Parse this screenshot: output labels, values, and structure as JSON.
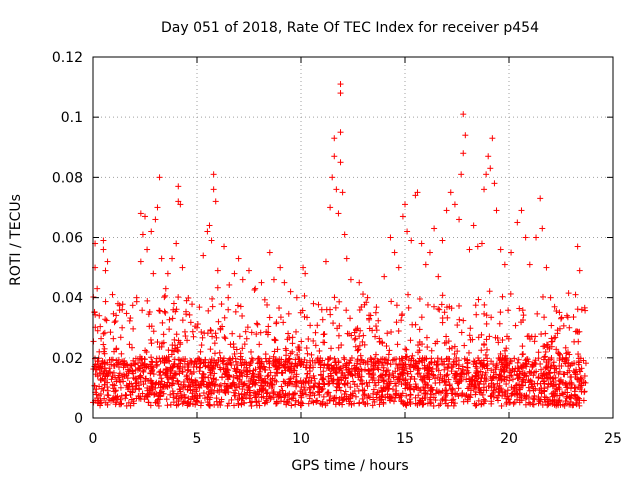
{
  "chart_data": {
    "type": "scatter",
    "title": "Day 051 of 2018, Rate Of TEC Index for receiver p454",
    "xlabel": "GPS time / hours",
    "ylabel": "ROTI / TECUs",
    "xlim": [
      0,
      25
    ],
    "ylim": [
      0,
      0.12
    ],
    "xticks": [
      0,
      5,
      10,
      15,
      20,
      25
    ],
    "xtick_labels": [
      "0",
      "5",
      "10",
      "15",
      "20",
      "25"
    ],
    "yticks": [
      0,
      0.02,
      0.04,
      0.06,
      0.08,
      0.1,
      0.12
    ],
    "ytick_labels": [
      "0",
      "0.02",
      "0.04",
      "0.06",
      "0.08",
      "0.1",
      "0.12"
    ],
    "grid": true,
    "marker": "+",
    "color": "#ff0000",
    "series": [
      {
        "name": "ROTI",
        "points": [
          [
            0.1,
            0.058
          ],
          [
            0.1,
            0.05
          ],
          [
            0.2,
            0.043
          ],
          [
            0.3,
            0.034
          ],
          [
            0.3,
            0.022
          ],
          [
            0.5,
            0.028
          ],
          [
            0.5,
            0.059
          ],
          [
            0.5,
            0.056
          ],
          [
            0.6,
            0.049
          ],
          [
            0.7,
            0.052
          ],
          [
            1.2,
            0.038
          ],
          [
            1.4,
            0.03
          ],
          [
            1.5,
            0.019
          ],
          [
            2.1,
            0.04
          ],
          [
            2.3,
            0.052
          ],
          [
            2.3,
            0.068
          ],
          [
            2.4,
            0.061
          ],
          [
            2.5,
            0.067
          ],
          [
            2.6,
            0.056
          ],
          [
            2.8,
            0.062
          ],
          [
            2.9,
            0.048
          ],
          [
            3.0,
            0.066
          ],
          [
            3.1,
            0.07
          ],
          [
            3.2,
            0.08
          ],
          [
            3.3,
            0.053
          ],
          [
            3.5,
            0.043
          ],
          [
            3.6,
            0.048
          ],
          [
            3.8,
            0.053
          ],
          [
            4.0,
            0.058
          ],
          [
            4.1,
            0.072
          ],
          [
            4.1,
            0.077
          ],
          [
            4.2,
            0.071
          ],
          [
            4.3,
            0.05
          ],
          [
            4.5,
            0.039
          ],
          [
            5.0,
            0.03
          ],
          [
            5.3,
            0.054
          ],
          [
            5.5,
            0.062
          ],
          [
            5.6,
            0.064
          ],
          [
            5.7,
            0.059
          ],
          [
            5.8,
            0.081
          ],
          [
            5.8,
            0.076
          ],
          [
            5.9,
            0.072
          ],
          [
            6.0,
            0.049
          ],
          [
            6.3,
            0.057
          ],
          [
            6.5,
            0.04
          ],
          [
            6.8,
            0.048
          ],
          [
            7.0,
            0.053
          ],
          [
            7.2,
            0.046
          ],
          [
            7.5,
            0.049
          ],
          [
            7.8,
            0.043
          ],
          [
            8.1,
            0.045
          ],
          [
            8.5,
            0.055
          ],
          [
            8.7,
            0.046
          ],
          [
            9.0,
            0.05
          ],
          [
            9.2,
            0.045
          ],
          [
            9.5,
            0.042
          ],
          [
            9.8,
            0.04
          ],
          [
            10.1,
            0.05
          ],
          [
            10.2,
            0.048
          ],
          [
            10.6,
            0.038
          ],
          [
            11.0,
            0.036
          ],
          [
            11.2,
            0.052
          ],
          [
            11.4,
            0.07
          ],
          [
            11.5,
            0.08
          ],
          [
            11.6,
            0.093
          ],
          [
            11.6,
            0.087
          ],
          [
            11.7,
            0.076
          ],
          [
            11.8,
            0.068
          ],
          [
            11.9,
            0.111
          ],
          [
            11.9,
            0.108
          ],
          [
            11.9,
            0.095
          ],
          [
            11.9,
            0.085
          ],
          [
            12.0,
            0.075
          ],
          [
            12.1,
            0.061
          ],
          [
            12.2,
            0.053
          ],
          [
            12.4,
            0.046
          ],
          [
            12.8,
            0.045
          ],
          [
            13.2,
            0.04
          ],
          [
            13.6,
            0.035
          ],
          [
            14.0,
            0.047
          ],
          [
            14.3,
            0.06
          ],
          [
            14.5,
            0.055
          ],
          [
            14.7,
            0.05
          ],
          [
            14.9,
            0.067
          ],
          [
            15.0,
            0.071
          ],
          [
            15.1,
            0.062
          ],
          [
            15.3,
            0.059
          ],
          [
            15.5,
            0.074
          ],
          [
            15.6,
            0.075
          ],
          [
            15.8,
            0.058
          ],
          [
            16.0,
            0.051
          ],
          [
            16.2,
            0.055
          ],
          [
            16.4,
            0.063
          ],
          [
            16.6,
            0.047
          ],
          [
            16.8,
            0.059
          ],
          [
            17.0,
            0.069
          ],
          [
            17.2,
            0.075
          ],
          [
            17.4,
            0.071
          ],
          [
            17.6,
            0.066
          ],
          [
            17.7,
            0.081
          ],
          [
            17.8,
            0.088
          ],
          [
            17.8,
            0.101
          ],
          [
            17.9,
            0.094
          ],
          [
            18.1,
            0.056
          ],
          [
            18.3,
            0.064
          ],
          [
            18.5,
            0.057
          ],
          [
            18.7,
            0.058
          ],
          [
            18.8,
            0.076
          ],
          [
            18.9,
            0.081
          ],
          [
            19.0,
            0.087
          ],
          [
            19.1,
            0.083
          ],
          [
            19.2,
            0.093
          ],
          [
            19.3,
            0.078
          ],
          [
            19.4,
            0.069
          ],
          [
            19.6,
            0.056
          ],
          [
            19.8,
            0.051
          ],
          [
            20.1,
            0.055
          ],
          [
            20.4,
            0.065
          ],
          [
            20.6,
            0.069
          ],
          [
            20.8,
            0.06
          ],
          [
            21.0,
            0.051
          ],
          [
            21.3,
            0.06
          ],
          [
            21.5,
            0.073
          ],
          [
            21.6,
            0.063
          ],
          [
            21.8,
            0.05
          ],
          [
            22.0,
            0.04
          ],
          [
            22.5,
            0.033
          ],
          [
            22.9,
            0.03
          ],
          [
            23.2,
            0.041
          ],
          [
            23.3,
            0.057
          ],
          [
            23.4,
            0.049
          ],
          [
            23.5,
            0.036
          ]
        ]
      }
    ]
  }
}
